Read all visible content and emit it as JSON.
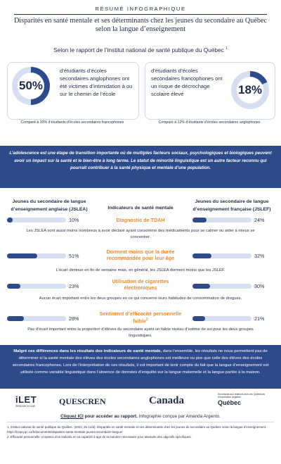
{
  "header": {
    "kicker": "RÉSUMÉ INFOGRAPHIQUE",
    "title": "Disparités en santé mentale et ses déterminants chez les jeunes du secondaire au Québec selon la langue d’enseignement",
    "subtitle": "Selon le rapport de l’Institut national de santé publique du Québec",
    "subtitle_sup": "1"
  },
  "stats": [
    {
      "value": "50%",
      "percent": 50,
      "text": "d’étudiants d’écoles secondaires anglophones ont été victimes d’intimidation à ou sur le chemin de l’école",
      "compare": "Comparé à 30% d’étudiants d’écoles secondaires francophones"
    },
    {
      "value": "18%",
      "percent": 18,
      "text": "d’étudiants d’écoles secondaires francophones ont un risque de décrochage scolaire élevé",
      "compare": "Comparé à 12% d’étudiants d’écoles secondaires anglophones"
    }
  ],
  "intro": "L’adolescence est une étape de transition importante où de multiples facteurs sociaux, psychologiques et biologiques peuvent avoir un impact sur la santé et le bien-être à long terme. Le statut de minorité linguistique est un autre facteur reconnu qui pourrait contribuer à la santé physique et mentale d’une population.",
  "columns": {
    "left": "Jeunes du secondaire de langue d’enseignement anglaise (JSLEA)",
    "middle": "Indicateurs de santé mentale",
    "right": "Jeunes du secondaire de langue d’enseignement française (JSLEF)"
  },
  "indicators": [
    {
      "label": "Diagnostic de TDAH",
      "left_value": "10%",
      "left_pct": 10,
      "right_value": "24%",
      "right_pct": 24,
      "note": "Les JSLEA sont aussi moins nombreux à avoir déclaré ayant consommé des médicaments pour se calmer ou aider à mieux se concentrer."
    },
    {
      "label": "Dorment moins que la durée recommandée pour leur âge",
      "left_value": "51%",
      "left_pct": 51,
      "right_value": "32%",
      "right_pct": 32,
      "note": "L’écart diminue en fin de semaine mais, en général, les JSLEA dorment moins que les JSLEF."
    },
    {
      "label": "Utilisation de cigarettes électroniques",
      "left_value": "23%",
      "left_pct": 23,
      "right_value": "30%",
      "right_pct": 30,
      "note": "Aucun écart important entre les deux groupes en ce qui concerne leurs habitudes de consommation de drogues."
    },
    {
      "label": "Sentiment d’efficacité personnelle faible",
      "label_sup": "2",
      "left_value": "28%",
      "left_pct": 28,
      "right_value": "21%",
      "right_pct": 21,
      "note": "Pas d’écart important entre la proportion d’élèves du secondaire ayant un faible niveau d’estime de soi pour les deux groupes linguistiques."
    }
  ],
  "conclusion_bold": "Malgré ces différences dans les résultats des indicateurs de santé mentale,",
  "conclusion": " dans l’ensemble, les résultats ne nous permettent pas de déterminer si la santé mentale des élèves des écoles secondaires anglophones est meilleure ou pire que celle des élèves des écoles secondaires francophones. Lors de l’interprétation de ces résultats, il est important de tenir compte du fait que la langue d’enseignement est utilisée comme variable linguistique dans l’absence de données d’enquête sur la langue maternelle et la langue parlée à la maison.",
  "logos": {
    "ilet": "iLET",
    "ilet_sub": "RESEARCH HUB",
    "quescren": "QUESCREN",
    "canada": "Canada",
    "secretariat": "Secrétariat aux relations avec les Québécois d’expression anglaise",
    "quebec": "Québec"
  },
  "footer": {
    "link": "Cliquez ICI",
    "link_rest": " pour accéder au rapport.",
    "credit": " Infographie conçue par Amanda Argento.",
    "ref1": "1. Institut national de santé publique du Québec. (2022, 25 Août). Disparités en santé mentale et ses déterminants chez les jeunes du secondaire au Québec selon la langue d’enseignement. https://inspq.qc.ca/fr/documents/disparites-sante-mentale-jeunes-secondaire-langue/",
    "ref2": "2. Efficacité personnelle: croyance d’un individu en sa capacité à agir de la manière nécessaire pour atteindre des objectifs spécifiques."
  },
  "colors": {
    "navy": "#2d4a8a",
    "orange": "#f28a2b",
    "track": "#d5dff0",
    "text": "#1f2a44"
  }
}
